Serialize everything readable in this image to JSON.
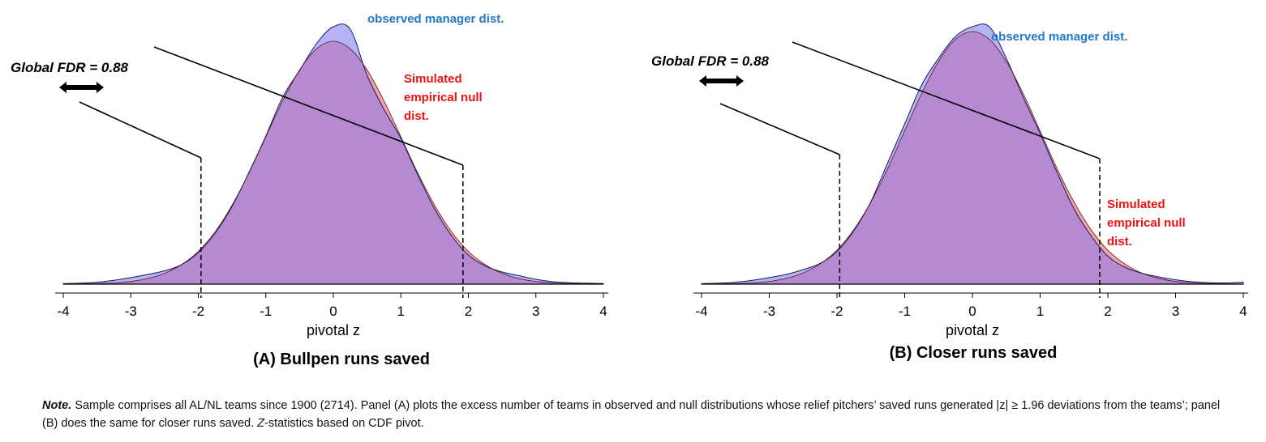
{
  "chart_data": [
    {
      "type": "area",
      "title": "(A) Bullpen runs saved",
      "xlabel": "pivotal z",
      "xlim": [
        -4,
        4
      ],
      "xticks": [
        "-4",
        "-3",
        "-2",
        "-1",
        "0",
        "1",
        "2",
        "3",
        "4"
      ],
      "grid": false,
      "z": [
        -4,
        -3.75,
        -3.5,
        -3.25,
        -3,
        -2.75,
        -2.5,
        -2.25,
        -2,
        -1.75,
        -1.5,
        -1.25,
        -1,
        -0.75,
        -0.5,
        -0.25,
        0,
        0.25,
        0.5,
        0.75,
        1,
        1.25,
        1.5,
        1.75,
        2,
        2.25,
        2.5,
        2.75,
        3,
        3.25,
        3.5,
        3.75,
        4
      ],
      "series": [
        {
          "name": "observed manager dist.",
          "color": "#b3b3f5",
          "values": [
            0.002,
            0.004,
            0.008,
            0.016,
            0.027,
            0.04,
            0.055,
            0.08,
            0.13,
            0.21,
            0.32,
            0.46,
            0.61,
            0.77,
            0.88,
            0.99,
            1.06,
            1.05,
            0.86,
            0.72,
            0.6,
            0.45,
            0.31,
            0.2,
            0.12,
            0.075,
            0.05,
            0.035,
            0.02,
            0.01,
            0.006,
            0.004,
            0.003
          ]
        },
        {
          "name": "Simulated empirical null dist.",
          "color": "#f0a3a3",
          "values": [
            0.0003,
            0.0009,
            0.0022,
            0.005,
            0.011,
            0.023,
            0.044,
            0.08,
            0.135,
            0.216,
            0.325,
            0.458,
            0.607,
            0.755,
            0.882,
            0.969,
            1.0,
            0.969,
            0.882,
            0.755,
            0.607,
            0.458,
            0.325,
            0.216,
            0.135,
            0.08,
            0.044,
            0.023,
            0.011,
            0.005,
            0.0022,
            0.0009,
            0.0003
          ]
        }
      ],
      "thresholds": [
        -1.96,
        1.92
      ],
      "annotation": "Global FDR = 0.88",
      "observed_label": "observed manager dist.",
      "null_label": [
        "Simulated",
        "empirical null",
        "dist."
      ]
    },
    {
      "type": "area",
      "title": "(B) Closer runs saved",
      "xlabel": "pivotal z",
      "xlim": [
        -4,
        4
      ],
      "xticks": [
        "-4",
        "-3",
        "-2",
        "-1",
        "0",
        "1",
        "2",
        "3",
        "4"
      ],
      "grid": false,
      "z": [
        -4,
        -3.75,
        -3.5,
        -3.25,
        -3,
        -2.75,
        -2.5,
        -2.25,
        -2,
        -1.75,
        -1.5,
        -1.25,
        -1,
        -0.75,
        -0.5,
        -0.25,
        0,
        0.25,
        0.5,
        0.75,
        1,
        1.25,
        1.5,
        1.75,
        2,
        2.25,
        2.5,
        2.75,
        3,
        3.25,
        3.5,
        3.75,
        4
      ],
      "series": [
        {
          "name": "observed manager dist.",
          "color": "#b3b3f5",
          "values": [
            0.002,
            0.004,
            0.008,
            0.016,
            0.027,
            0.04,
            0.06,
            0.085,
            0.135,
            0.22,
            0.34,
            0.5,
            0.66,
            0.82,
            0.93,
            1.02,
            1.06,
            1.06,
            0.93,
            0.77,
            0.62,
            0.46,
            0.31,
            0.2,
            0.115,
            0.07,
            0.045,
            0.03,
            0.018,
            0.01,
            0.006,
            0.005,
            0.008
          ]
        },
        {
          "name": "Simulated empirical null dist.",
          "color": "#f0a3a3",
          "values": [
            0.0003,
            0.0009,
            0.0023,
            0.0052,
            0.011,
            0.024,
            0.046,
            0.083,
            0.14,
            0.225,
            0.338,
            0.476,
            0.631,
            0.785,
            0.917,
            1.008,
            1.04,
            1.008,
            0.917,
            0.785,
            0.631,
            0.476,
            0.338,
            0.225,
            0.14,
            0.083,
            0.046,
            0.024,
            0.011,
            0.0052,
            0.0023,
            0.0009,
            0.0003
          ]
        }
      ],
      "thresholds": [
        -1.96,
        1.88
      ],
      "annotation": "Global FDR = 0.88",
      "observed_label": "observed manager dist.",
      "null_label": [
        "Simulated",
        "empirical null",
        "dist."
      ]
    }
  ],
  "note": {
    "lead": "Note.",
    "text1": " Sample comprises all AL/NL teams since 1900 (2714).  Panel (A) plots the excess number of teams in observed and null distributions whose relief pitchers’ saved runs generated |z| ≥ 1.96 deviations from the teams’; panel (B) does the same for closer runs saved. ",
    "zlead": "Z",
    "text2": "-statistics based on CDF pivot."
  }
}
